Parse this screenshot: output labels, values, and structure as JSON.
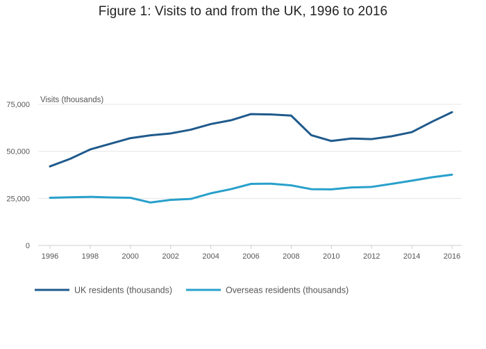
{
  "chart_data": {
    "type": "line",
    "title": "Figure 1: Visits to and from the UK, 1996 to 2016",
    "ylabel": "Visits (thousands)",
    "xlabel": "",
    "x": [
      1996,
      1997,
      1998,
      1999,
      2000,
      2001,
      2002,
      2003,
      2004,
      2005,
      2006,
      2007,
      2008,
      2009,
      2010,
      2011,
      2012,
      2013,
      2014,
      2015,
      2016
    ],
    "xticks": [
      "1996",
      "1998",
      "2000",
      "2002",
      "2004",
      "2006",
      "2008",
      "2010",
      "2012",
      "2014",
      "2016"
    ],
    "yticks": [
      "0",
      "25,000",
      "50,000",
      "75,000"
    ],
    "ylim": [
      0,
      75000
    ],
    "grid": "horizontal",
    "legend_position": "bottom-left",
    "series": [
      {
        "name": "UK residents (thousands)",
        "color": "#1f5a8c",
        "values": [
          42000,
          46000,
          51000,
          54000,
          57000,
          58500,
          59500,
          61500,
          64500,
          66500,
          69800,
          69600,
          69000,
          58600,
          55500,
          56800,
          56500,
          58000,
          60200,
          65700,
          70800
        ]
      },
      {
        "name": "Overseas residents (thousands)",
        "color": "#28a0cb",
        "values": [
          25300,
          25600,
          25800,
          25500,
          25300,
          22800,
          24200,
          24700,
          27700,
          29900,
          32700,
          32800,
          31900,
          29900,
          29800,
          30800,
          31100,
          32700,
          34400,
          36200,
          37600
        ]
      }
    ]
  }
}
